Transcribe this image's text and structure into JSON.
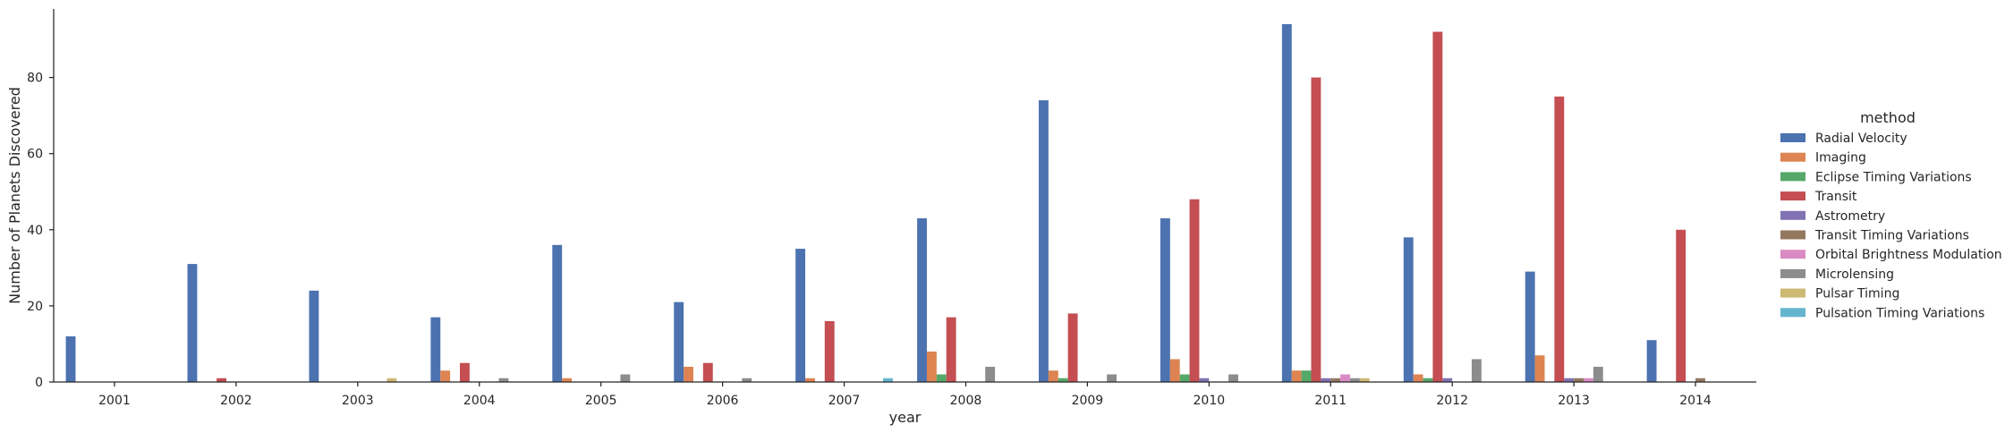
{
  "chart_data": {
    "type": "bar",
    "xlabel": "year",
    "ylabel": "Number of Planets Discovered",
    "ylim": [
      0,
      98
    ],
    "yticks": [
      0,
      20,
      40,
      60,
      80
    ],
    "grid": false,
    "legend_title": "method",
    "legend_position": "right",
    "categories": [
      "2001",
      "2002",
      "2003",
      "2004",
      "2005",
      "2006",
      "2007",
      "2008",
      "2009",
      "2010",
      "2011",
      "2012",
      "2013",
      "2014"
    ],
    "series": [
      {
        "name": "Radial Velocity",
        "color": "#4c72b0",
        "values": [
          12,
          31,
          24,
          17,
          36,
          21,
          35,
          43,
          74,
          43,
          94,
          38,
          29,
          11
        ]
      },
      {
        "name": "Imaging",
        "color": "#dd8452",
        "values": [
          0,
          0,
          0,
          3,
          1,
          4,
          1,
          8,
          3,
          6,
          3,
          2,
          7,
          0
        ]
      },
      {
        "name": "Eclipse Timing Variations",
        "color": "#55a868",
        "values": [
          0,
          0,
          0,
          0,
          0,
          0,
          0,
          2,
          1,
          2,
          3,
          1,
          0,
          0
        ]
      },
      {
        "name": "Transit",
        "color": "#c44e52",
        "values": [
          0,
          1,
          0,
          5,
          0,
          5,
          16,
          17,
          18,
          48,
          80,
          92,
          75,
          40
        ]
      },
      {
        "name": "Astrometry",
        "color": "#8172b3",
        "values": [
          0,
          0,
          0,
          0,
          0,
          0,
          0,
          0,
          0,
          1,
          1,
          1,
          1,
          0
        ]
      },
      {
        "name": "Transit Timing Variations",
        "color": "#937860",
        "values": [
          0,
          0,
          0,
          0,
          0,
          0,
          0,
          0,
          0,
          0,
          1,
          0,
          1,
          1
        ]
      },
      {
        "name": "Orbital Brightness Modulation",
        "color": "#da8bc3",
        "values": [
          0,
          0,
          0,
          0,
          0,
          0,
          0,
          0,
          0,
          0,
          2,
          0,
          1,
          0
        ]
      },
      {
        "name": "Microlensing",
        "color": "#8c8c8c",
        "values": [
          0,
          0,
          0,
          1,
          2,
          1,
          0,
          4,
          2,
          2,
          1,
          6,
          4,
          0
        ]
      },
      {
        "name": "Pulsar Timing",
        "color": "#ccb974",
        "values": [
          0,
          0,
          1,
          0,
          0,
          0,
          0,
          0,
          0,
          0,
          1,
          0,
          0,
          0
        ]
      },
      {
        "name": "Pulsation Timing Variations",
        "color": "#64b5cd",
        "values": [
          0,
          0,
          0,
          0,
          0,
          0,
          1,
          0,
          0,
          0,
          0,
          0,
          0,
          0
        ]
      }
    ]
  }
}
